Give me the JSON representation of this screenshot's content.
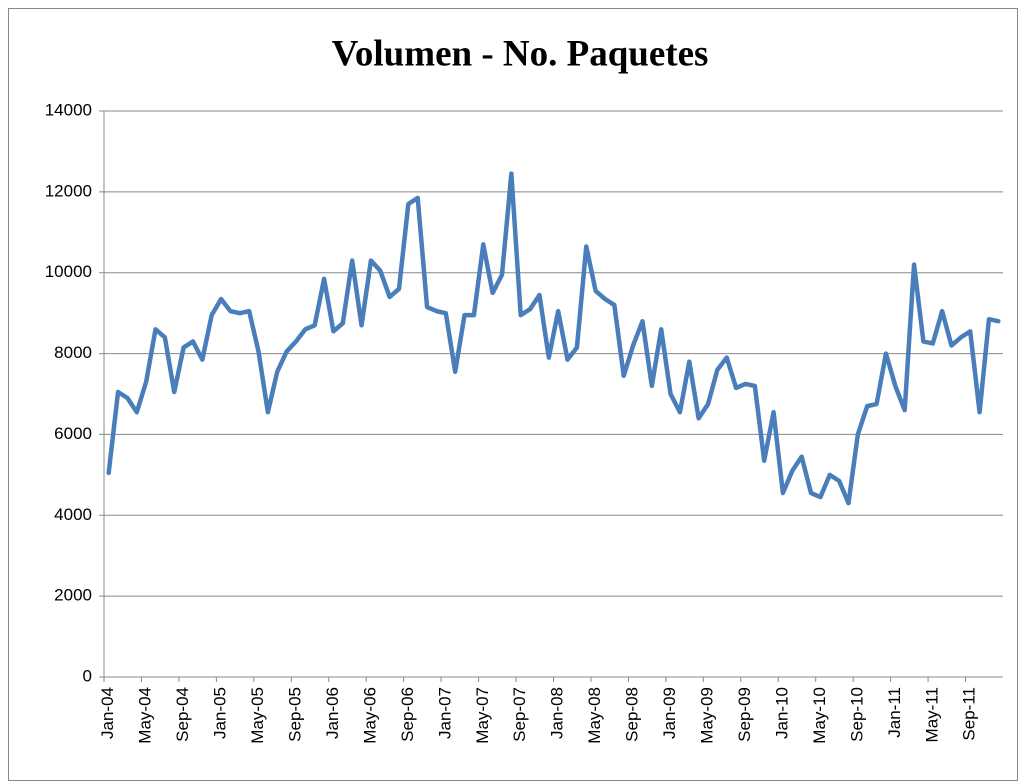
{
  "chart_data": {
    "type": "line",
    "title": "Volumen - No. Paquetes",
    "categories": [
      "Jan-04",
      null,
      null,
      null,
      "May-04",
      null,
      null,
      null,
      "Sep-04",
      null,
      null,
      null,
      "Jan-05",
      null,
      null,
      null,
      "May-05",
      null,
      null,
      null,
      "Sep-05",
      null,
      null,
      null,
      "Jan-06",
      null,
      null,
      null,
      "May-06",
      null,
      null,
      null,
      "Sep-06",
      null,
      null,
      null,
      "Jan-07",
      null,
      null,
      null,
      "May-07",
      null,
      null,
      null,
      "Sep-07",
      null,
      null,
      null,
      "Jan-08",
      null,
      null,
      null,
      "May-08",
      null,
      null,
      null,
      "Sep-08",
      null,
      null,
      null,
      "Jan-09",
      null,
      null,
      null,
      "May-09",
      null,
      null,
      null,
      "Sep-09",
      null,
      null,
      null,
      "Jan-10",
      null,
      null,
      null,
      "May-10",
      null,
      null,
      null,
      "Sep-10",
      null,
      null,
      null,
      "Jan-11",
      null,
      null,
      null,
      "May-11",
      null,
      null,
      null,
      "Sep-11",
      null,
      null,
      null
    ],
    "values": [
      5050,
      7050,
      6900,
      6550,
      7300,
      8600,
      8400,
      7050,
      8150,
      8300,
      7850,
      8950,
      9350,
      9050,
      9000,
      9050,
      8050,
      6550,
      7550,
      8050,
      8300,
      8600,
      8700,
      9850,
      8550,
      8750,
      10300,
      8700,
      10300,
      10050,
      9400,
      9600,
      11700,
      11850,
      9150,
      9050,
      9000,
      7550,
      8950,
      8950,
      10700,
      9500,
      9950,
      12450,
      8950,
      9100,
      9450,
      7900,
      9050,
      7850,
      8150,
      10650,
      9550,
      9350,
      9200,
      7450,
      8200,
      8800,
      7200,
      8600,
      7000,
      6550,
      7800,
      6400,
      6750,
      7600,
      7900,
      7150,
      7250,
      7200,
      5350,
      6550,
      4550,
      5100,
      5450,
      4550,
      4450,
      5000,
      4850,
      4300,
      6000,
      6700,
      6750,
      8000,
      7200,
      6600,
      10200,
      8300,
      8250,
      9050,
      8200,
      8400,
      8550,
      6550,
      8850,
      8800
    ],
    "color": "#4a7ebb",
    "ylim": [
      0,
      14000
    ],
    "yticks": [
      0,
      2000,
      4000,
      6000,
      8000,
      10000,
      12000,
      14000
    ],
    "grid": true
  }
}
